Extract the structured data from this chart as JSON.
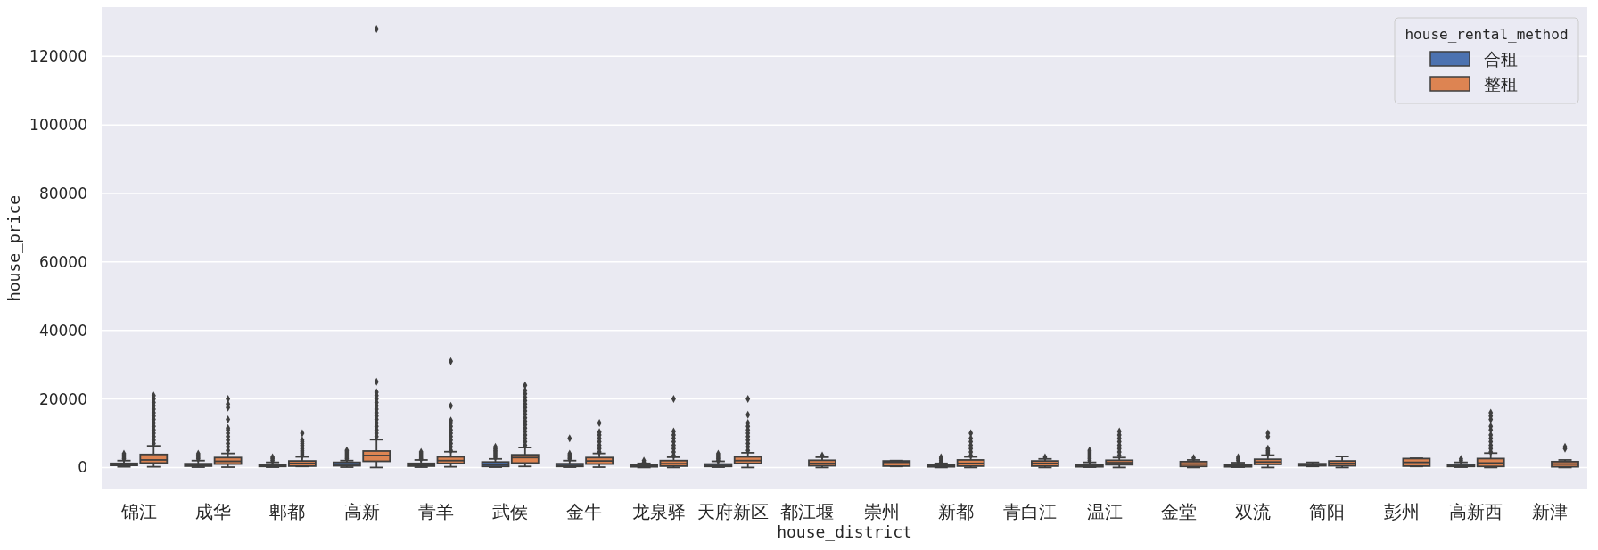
{
  "chart_data": {
    "type": "box",
    "xlabel": "house_district",
    "ylabel": "house_price",
    "legend_title": "house_rental_method",
    "legend": "top right",
    "grid": "y",
    "ylim": [
      -6400,
      134400
    ],
    "yticks": [
      0,
      20000,
      40000,
      60000,
      80000,
      100000,
      120000
    ],
    "categories": [
      "锦江",
      "成华",
      "郫都",
      "高新",
      "青羊",
      "武侯",
      "金牛",
      "龙泉驿",
      "天府新区",
      "都江堰",
      "崇州",
      "新都",
      "青白江",
      "温江",
      "金堂",
      "双流",
      "简阳",
      "彭州",
      "高新西",
      "新津"
    ],
    "series": [
      {
        "name": "合租",
        "color": "#4c72b0",
        "boxes": [
          {
            "low": 200,
            "q1": 600,
            "median": 800,
            "q3": 1200,
            "high": 2000,
            "outliers": [
              2500,
              3000,
              3500,
              4000
            ]
          },
          {
            "low": 100,
            "q1": 400,
            "median": 700,
            "q3": 1100,
            "high": 2000,
            "outliers": [
              2500,
              3000,
              3500,
              4000
            ]
          },
          {
            "low": 100,
            "q1": 300,
            "median": 500,
            "q3": 800,
            "high": 1500,
            "outliers": [
              2000,
              2500,
              3000
            ]
          },
          {
            "low": 100,
            "q1": 500,
            "median": 900,
            "q3": 1500,
            "high": 2000,
            "outliers": [
              2500,
              3000,
              3500,
              4000,
              4500,
              5000
            ]
          },
          {
            "low": 100,
            "q1": 400,
            "median": 700,
            "q3": 1200,
            "high": 2200,
            "outliers": [
              2500,
              3000,
              3500,
              4000,
              4500
            ]
          },
          {
            "low": 100,
            "q1": 300,
            "median": 800,
            "q3": 1600,
            "high": 2500,
            "outliers": [
              3000,
              3500,
              4000,
              4500,
              5000,
              5500,
              6000
            ]
          },
          {
            "low": 100,
            "q1": 300,
            "median": 600,
            "q3": 1100,
            "high": 2000,
            "outliers": [
              2500,
              3000,
              3500,
              4000,
              8500
            ]
          },
          {
            "low": 0,
            "q1": 200,
            "median": 400,
            "q3": 700,
            "high": 1200,
            "outliers": [
              1500,
              2000
            ]
          },
          {
            "low": 100,
            "q1": 300,
            "median": 600,
            "q3": 1000,
            "high": 1800,
            "outliers": [
              2000,
              2500,
              3000,
              3500,
              4000
            ]
          },
          null,
          null,
          {
            "low": 0,
            "q1": 200,
            "median": 400,
            "q3": 700,
            "high": 1200,
            "outliers": [
              1500,
              2000,
              2500,
              3000
            ]
          },
          null,
          {
            "low": 100,
            "q1": 200,
            "median": 400,
            "q3": 800,
            "high": 1500,
            "outliers": [
              2000,
              2500,
              3000,
              3500,
              4000,
              4500,
              5000
            ]
          },
          null,
          {
            "low": 100,
            "q1": 200,
            "median": 400,
            "q3": 800,
            "high": 1400,
            "outliers": [
              2000,
              2500,
              3000
            ]
          },
          {
            "low": 300,
            "q1": 500,
            "median": 800,
            "q3": 1100,
            "high": 1500
          },
          null,
          {
            "low": 100,
            "q1": 300,
            "median": 500,
            "q3": 900,
            "high": 1500,
            "outliers": [
              2000,
              2500
            ]
          },
          null
        ]
      },
      {
        "name": "整租",
        "color": "#dd8452",
        "boxes": [
          {
            "low": 200,
            "q1": 1300,
            "median": 2200,
            "q3": 3800,
            "high": 6300,
            "outliers": [
              7000,
              8000,
              9000,
              10000,
              11000,
              12000,
              13000,
              14000,
              15000,
              16000,
              17000,
              18000,
              19000,
              20000,
              21000
            ]
          },
          {
            "low": 100,
            "q1": 1000,
            "median": 1800,
            "q3": 2900,
            "high": 4100,
            "outliers": [
              5000,
              6000,
              7000,
              8000,
              9000,
              10000,
              11000,
              11500,
              14000,
              17500,
              18500,
              20000
            ]
          },
          {
            "low": 300,
            "q1": 400,
            "median": 1200,
            "q3": 1900,
            "high": 3100,
            "outliers": [
              3500,
              4000,
              4500,
              5000,
              5500,
              6000,
              6500,
              7000,
              7500,
              8000,
              10000
            ]
          },
          {
            "low": 0,
            "q1": 1800,
            "median": 3500,
            "q3": 4800,
            "high": 8100,
            "outliers": [
              9000,
              10000,
              11000,
              12000,
              13000,
              14000,
              15000,
              16000,
              17000,
              18000,
              19000,
              20000,
              21000,
              22000,
              25000,
              128000
            ]
          },
          {
            "low": 200,
            "q1": 1200,
            "median": 2000,
            "q3": 3100,
            "high": 4600,
            "outliers": [
              5000,
              6000,
              7000,
              8000,
              9000,
              10000,
              11000,
              12000,
              13000,
              13700,
              18000,
              31000
            ]
          },
          {
            "low": 300,
            "q1": 1300,
            "median": 2900,
            "q3": 3700,
            "high": 5800,
            "outliers": [
              6500,
              7500,
              8500,
              9500,
              10500,
              11500,
              12500,
              13500,
              14500,
              15500,
              16500,
              17500,
              18500,
              19500,
              20500,
              21500,
              22500,
              24000
            ]
          },
          {
            "low": 100,
            "q1": 1000,
            "median": 1900,
            "q3": 2900,
            "high": 4100,
            "outliers": [
              4500,
              5500,
              6500,
              7500,
              8500,
              9500,
              10300,
              13000
            ]
          },
          {
            "low": 0,
            "q1": 400,
            "median": 1100,
            "q3": 2000,
            "high": 3000,
            "outliers": [
              3500,
              4500,
              5500,
              6500,
              7500,
              8500,
              9500,
              10500,
              20000
            ]
          },
          {
            "low": 0,
            "q1": 1200,
            "median": 2000,
            "q3": 3100,
            "high": 4300,
            "outliers": [
              5000,
              6000,
              7000,
              8000,
              9000,
              10000,
              11000,
              12000,
              13000,
              15400,
              20000
            ]
          },
          {
            "low": 0,
            "q1": 500,
            "median": 1200,
            "q3": 2100,
            "high": 3000,
            "outliers": [
              3500
            ]
          },
          {
            "low": 300,
            "q1": 400,
            "median": 1500,
            "q3": 1900,
            "high": 2000
          },
          {
            "low": 0,
            "q1": 400,
            "median": 1200,
            "q3": 2200,
            "high": 3100,
            "outliers": [
              3500,
              4500,
              5500,
              6500,
              7500,
              8500,
              10000
            ]
          },
          {
            "low": 0,
            "q1": 400,
            "median": 1200,
            "q3": 1900,
            "high": 2500,
            "outliers": [
              3000
            ]
          },
          {
            "low": 0,
            "q1": 800,
            "median": 1400,
            "q3": 2100,
            "high": 2900,
            "outliers": [
              3500,
              4500,
              5500,
              6500,
              7500,
              8500,
              9500,
              10500
            ]
          },
          {
            "low": 0,
            "q1": 300,
            "median": 1000,
            "q3": 1700,
            "high": 2200,
            "outliers": [
              2800
            ]
          },
          {
            "low": 0,
            "q1": 900,
            "median": 1600,
            "q3": 2400,
            "high": 3600,
            "outliers": [
              4000,
              4500,
              5000,
              5500,
              9000,
              10000
            ]
          },
          {
            "low": 0,
            "q1": 500,
            "median": 1200,
            "q3": 1900,
            "high": 3200
          },
          {
            "low": 300,
            "q1": 400,
            "median": 1500,
            "q3": 2600,
            "high": 2700
          },
          {
            "low": 0,
            "q1": 300,
            "median": 1300,
            "q3": 2600,
            "high": 4200,
            "outliers": [
              4500,
              5500,
              6500,
              7500,
              8500,
              9500,
              11000,
              12000,
              14000,
              15000,
              16000
            ]
          },
          {
            "low": 0,
            "q1": 200,
            "median": 1000,
            "q3": 1700,
            "high": 2200,
            "outliers": [
              5500,
              6000
            ]
          }
        ]
      }
    ]
  }
}
